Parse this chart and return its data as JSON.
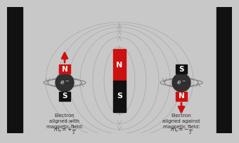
{
  "bg_color": "#c8c8c8",
  "inner_bg": "#f0f0f0",
  "text_color": "#2a2a2a",
  "red_color": "#cc1111",
  "black_color": "#111111",
  "white_color": "#ffffff",
  "electron_color": "#303030",
  "electron_text": "#dddddd",
  "orbit_color": "#888888",
  "field_color": "#aaaaaa",
  "left_formula": "$m_s = +\\dfrac{1}{2}$",
  "right_formula": "$m_s = -\\dfrac{1}{2}$",
  "left_label": "Electron\naligned with\nmagnetic field:",
  "right_label": "Electron\naligned against\nmagnetic field:"
}
